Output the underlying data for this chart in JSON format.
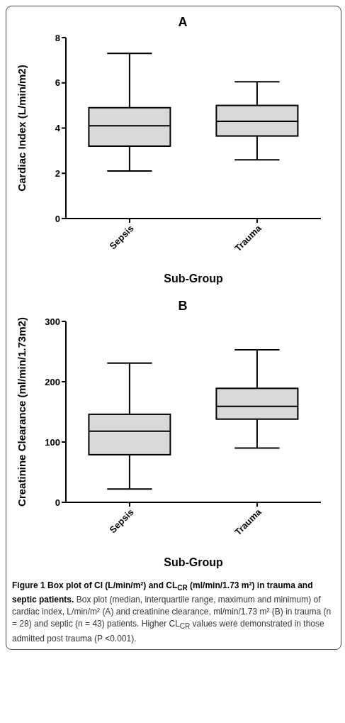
{
  "chart_data": [
    {
      "type": "box",
      "title": "A",
      "categories": [
        "Sepsis",
        "Trauma"
      ],
      "color": "#d9d9d9",
      "xlabel": "Sub-Group",
      "ylabel": "Cardiac Index (L/min/m2)",
      "ylim": [
        0,
        8
      ],
      "yticks": [
        0,
        2,
        4,
        6,
        8
      ],
      "boxes": [
        {
          "low": 2.1,
          "q1": 3.2,
          "median": 4.1,
          "q3": 4.9,
          "high": 7.3
        },
        {
          "low": 2.6,
          "q1": 3.65,
          "median": 4.3,
          "q3": 5.0,
          "high": 6.05
        }
      ]
    },
    {
      "type": "box",
      "title": "B",
      "categories": [
        "Sepsis",
        "Trauma"
      ],
      "color": "#d9d9d9",
      "xlabel": "Sub-Group",
      "ylabel": "Creatinine Clearance (ml/min/1.73m2)",
      "ylim": [
        0,
        300
      ],
      "yticks": [
        0,
        100,
        200,
        300
      ],
      "boxes": [
        {
          "low": 22,
          "q1": 79,
          "median": 118,
          "q3": 146,
          "high": 231
        },
        {
          "low": 90,
          "q1": 138,
          "median": 159,
          "q3": 189,
          "high": 253
        }
      ],
      "annotations": [
        "Figure 1 Box plot of CI (L/min/m²) and CL$_{CR}$ (ml/min/1.73 m²) in trauma and septic patients.",
        "Box plot (median, interquartile range, maximum and minimum) of cardiac index, L/min/m² (A) and creatinine clearance, ml/min/1.73 m² (B) in trauma (n = 28) and septic (n = 43) patients. Higher CL$_{CR}$ values were demonstrated in those admitted post trauma (P <0.001)."
      ]
    }
  ]
}
